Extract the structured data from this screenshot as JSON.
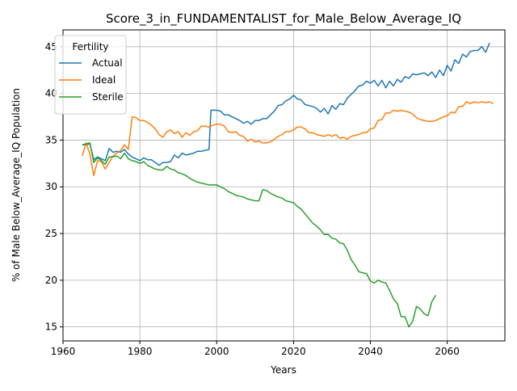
{
  "chart_data": {
    "type": "line",
    "title": "Score_3_in_FUNDAMENTALIST_for_Male_Below_Average_IQ",
    "xlabel": "Years",
    "ylabel": "% of Male Below_Average_IQ Population",
    "xlim": [
      1960,
      2075
    ],
    "ylim": [
      13.5,
      46.8
    ],
    "xticks": [
      "1960",
      "1980",
      "2000",
      "2020",
      "2040",
      "2060"
    ],
    "yticks": [
      "15",
      "20",
      "25",
      "30",
      "35",
      "40",
      "45"
    ],
    "grid": true,
    "legend": {
      "title": "Fertility",
      "position": "top-left"
    },
    "series": [
      {
        "name": "Actual",
        "color": "#1f77b4",
        "points": [
          [
            1965,
            34.5
          ],
          [
            1966,
            34.5
          ],
          [
            1967,
            34.6
          ],
          [
            1968,
            32.9
          ],
          [
            1969,
            33.2
          ],
          [
            1970,
            33.0
          ],
          [
            1971,
            32.8
          ],
          [
            1972,
            34.1
          ],
          [
            1973,
            33.7
          ],
          [
            1974,
            33.8
          ],
          [
            1975,
            33.7
          ],
          [
            1976,
            34.0
          ],
          [
            1977,
            33.5
          ],
          [
            1978,
            33.2
          ],
          [
            1979,
            33.0
          ],
          [
            1980,
            32.8
          ],
          [
            1981,
            33.1
          ],
          [
            1982,
            32.9
          ],
          [
            1983,
            32.9
          ],
          [
            1984,
            32.6
          ],
          [
            1985,
            32.3
          ],
          [
            1986,
            32.6
          ],
          [
            1987,
            32.6
          ],
          [
            1988,
            32.7
          ],
          [
            1989,
            33.4
          ],
          [
            1990,
            33.1
          ],
          [
            1991,
            33.6
          ],
          [
            1992,
            33.4
          ],
          [
            1993,
            33.5
          ],
          [
            1994,
            33.6
          ],
          [
            1995,
            33.8
          ],
          [
            1996,
            33.8
          ],
          [
            1997,
            33.9
          ],
          [
            1998,
            34.0
          ],
          [
            1998.5,
            38.2
          ],
          [
            1999,
            38.2
          ],
          [
            2000,
            38.2
          ],
          [
            2001,
            38.1
          ],
          [
            2002,
            37.7
          ],
          [
            2003,
            37.7
          ],
          [
            2004,
            37.5
          ],
          [
            2005,
            37.3
          ],
          [
            2006,
            37.1
          ],
          [
            2007,
            36.8
          ],
          [
            2008,
            37.0
          ],
          [
            2009,
            36.7
          ],
          [
            2010,
            37.1
          ],
          [
            2011,
            37.1
          ],
          [
            2012,
            37.3
          ],
          [
            2013,
            37.3
          ],
          [
            2014,
            37.7
          ],
          [
            2015,
            38.1
          ],
          [
            2016,
            38.7
          ],
          [
            2017,
            38.8
          ],
          [
            2018,
            39.2
          ],
          [
            2019,
            39.4
          ],
          [
            2020,
            39.8
          ],
          [
            2021,
            39.4
          ],
          [
            2022,
            39.3
          ],
          [
            2023,
            38.8
          ],
          [
            2024,
            38.7
          ],
          [
            2025,
            38.6
          ],
          [
            2026,
            38.4
          ],
          [
            2027,
            38.0
          ],
          [
            2028,
            38.4
          ],
          [
            2029,
            37.8
          ],
          [
            2030,
            38.7
          ],
          [
            2031,
            38.3
          ],
          [
            2032,
            38.9
          ],
          [
            2033,
            38.8
          ],
          [
            2034,
            39.5
          ],
          [
            2035,
            39.9
          ],
          [
            2036,
            40.3
          ],
          [
            2037,
            40.8
          ],
          [
            2038,
            40.9
          ],
          [
            2039,
            41.3
          ],
          [
            2040,
            41.1
          ],
          [
            2041,
            41.4
          ],
          [
            2042,
            40.8
          ],
          [
            2043,
            41.4
          ],
          [
            2044,
            40.6
          ],
          [
            2045,
            41.3
          ],
          [
            2046,
            40.8
          ],
          [
            2047,
            41.5
          ],
          [
            2048,
            41.2
          ],
          [
            2049,
            41.8
          ],
          [
            2050,
            41.6
          ],
          [
            2051,
            42.1
          ],
          [
            2052,
            42.0
          ],
          [
            2053,
            42.1
          ],
          [
            2054,
            42.2
          ],
          [
            2055,
            41.9
          ],
          [
            2056,
            42.3
          ],
          [
            2057,
            41.7
          ],
          [
            2058,
            42.5
          ],
          [
            2059,
            41.9
          ],
          [
            2060,
            43.0
          ],
          [
            2061,
            42.4
          ],
          [
            2062,
            43.6
          ],
          [
            2063,
            43.2
          ],
          [
            2064,
            44.2
          ],
          [
            2065,
            43.9
          ],
          [
            2066,
            44.5
          ],
          [
            2067,
            44.6
          ],
          [
            2068,
            44.6
          ],
          [
            2069,
            45.0
          ],
          [
            2070,
            44.4
          ],
          [
            2071,
            45.4
          ]
        ]
      },
      {
        "name": "Ideal",
        "color": "#ff7f0e",
        "points": [
          [
            1965,
            33.3
          ],
          [
            1966,
            34.7
          ],
          [
            1967,
            33.5
          ],
          [
            1968,
            31.2
          ],
          [
            1969,
            32.8
          ],
          [
            1970,
            32.7
          ],
          [
            1971,
            31.9
          ],
          [
            1972,
            32.6
          ],
          [
            1973,
            33.3
          ],
          [
            1974,
            33.6
          ],
          [
            1975,
            33.9
          ],
          [
            1976,
            34.5
          ],
          [
            1977,
            34.0
          ],
          [
            1978,
            37.5
          ],
          [
            1979,
            37.4
          ],
          [
            1980,
            37.1
          ],
          [
            1981,
            37.1
          ],
          [
            1982,
            36.9
          ],
          [
            1983,
            36.6
          ],
          [
            1984,
            36.2
          ],
          [
            1985,
            35.6
          ],
          [
            1986,
            35.3
          ],
          [
            1987,
            35.9
          ],
          [
            1988,
            36.1
          ],
          [
            1989,
            35.7
          ],
          [
            1990,
            35.9
          ],
          [
            1991,
            35.3
          ],
          [
            1992,
            35.8
          ],
          [
            1993,
            35.5
          ],
          [
            1994,
            35.9
          ],
          [
            1995,
            36.0
          ],
          [
            1996,
            36.5
          ],
          [
            1997,
            36.5
          ],
          [
            1998,
            36.4
          ],
          [
            1999,
            36.6
          ],
          [
            2000,
            36.7
          ],
          [
            2001,
            36.7
          ],
          [
            2002,
            36.5
          ],
          [
            2003,
            35.9
          ],
          [
            2004,
            35.8
          ],
          [
            2005,
            35.9
          ],
          [
            2006,
            35.5
          ],
          [
            2007,
            35.4
          ],
          [
            2008,
            34.9
          ],
          [
            2009,
            35.1
          ],
          [
            2010,
            34.8
          ],
          [
            2011,
            34.9
          ],
          [
            2012,
            34.7
          ],
          [
            2013,
            34.7
          ],
          [
            2014,
            34.8
          ],
          [
            2015,
            35.1
          ],
          [
            2016,
            35.4
          ],
          [
            2017,
            35.6
          ],
          [
            2018,
            35.9
          ],
          [
            2019,
            35.9
          ],
          [
            2020,
            36.1
          ],
          [
            2021,
            36.4
          ],
          [
            2022,
            36.4
          ],
          [
            2023,
            36.2
          ],
          [
            2024,
            35.8
          ],
          [
            2025,
            35.8
          ],
          [
            2026,
            35.6
          ],
          [
            2027,
            35.5
          ],
          [
            2028,
            35.4
          ],
          [
            2029,
            35.6
          ],
          [
            2030,
            35.4
          ],
          [
            2031,
            35.6
          ],
          [
            2032,
            35.2
          ],
          [
            2033,
            35.3
          ],
          [
            2034,
            35.1
          ],
          [
            2035,
            35.4
          ],
          [
            2036,
            35.5
          ],
          [
            2037,
            35.6
          ],
          [
            2038,
            35.8
          ],
          [
            2039,
            35.8
          ],
          [
            2040,
            36.2
          ],
          [
            2041,
            36.3
          ],
          [
            2042,
            37.1
          ],
          [
            2043,
            37.2
          ],
          [
            2044,
            37.9
          ],
          [
            2045,
            37.9
          ],
          [
            2046,
            38.2
          ],
          [
            2047,
            38.1
          ],
          [
            2048,
            38.2
          ],
          [
            2049,
            38.1
          ],
          [
            2050,
            38.0
          ],
          [
            2051,
            37.8
          ],
          [
            2052,
            37.4
          ],
          [
            2053,
            37.2
          ],
          [
            2054,
            37.1
          ],
          [
            2055,
            37.0
          ],
          [
            2056,
            37.0
          ],
          [
            2057,
            37.1
          ],
          [
            2058,
            37.3
          ],
          [
            2059,
            37.5
          ],
          [
            2060,
            37.6
          ],
          [
            2061,
            38.0
          ],
          [
            2062,
            37.9
          ],
          [
            2063,
            38.6
          ],
          [
            2064,
            38.6
          ],
          [
            2065,
            39.1
          ],
          [
            2066,
            38.9
          ],
          [
            2067,
            39.1
          ],
          [
            2068,
            39.0
          ],
          [
            2069,
            39.1
          ],
          [
            2070,
            39.0
          ],
          [
            2071,
            39.1
          ],
          [
            2072,
            38.9
          ]
        ]
      },
      {
        "name": "Sterile",
        "color": "#2ca02c",
        "points": [
          [
            1965,
            34.5
          ],
          [
            1966,
            34.6
          ],
          [
            1967,
            34.7
          ],
          [
            1968,
            32.6
          ],
          [
            1969,
            33.1
          ],
          [
            1970,
            32.8
          ],
          [
            1971,
            32.4
          ],
          [
            1972,
            33.2
          ],
          [
            1973,
            33.2
          ],
          [
            1974,
            33.3
          ],
          [
            1975,
            33.0
          ],
          [
            1976,
            33.6
          ],
          [
            1977,
            33.0
          ],
          [
            1978,
            32.8
          ],
          [
            1979,
            32.7
          ],
          [
            1980,
            32.5
          ],
          [
            1981,
            32.7
          ],
          [
            1982,
            32.3
          ],
          [
            1983,
            32.1
          ],
          [
            1984,
            31.9
          ],
          [
            1985,
            31.8
          ],
          [
            1986,
            31.8
          ],
          [
            1987,
            32.2
          ],
          [
            1988,
            31.9
          ],
          [
            1989,
            31.8
          ],
          [
            1990,
            31.5
          ],
          [
            1991,
            31.4
          ],
          [
            1992,
            31.2
          ],
          [
            1993,
            30.9
          ],
          [
            1994,
            30.7
          ],
          [
            1995,
            30.5
          ],
          [
            1996,
            30.4
          ],
          [
            1997,
            30.3
          ],
          [
            1998,
            30.2
          ],
          [
            1999,
            30.2
          ],
          [
            2000,
            30.2
          ],
          [
            2001,
            30.0
          ],
          [
            2002,
            29.8
          ],
          [
            2003,
            29.5
          ],
          [
            2004,
            29.3
          ],
          [
            2005,
            29.1
          ],
          [
            2006,
            29.0
          ],
          [
            2007,
            28.9
          ],
          [
            2008,
            28.7
          ],
          [
            2009,
            28.6
          ],
          [
            2010,
            28.5
          ],
          [
            2011,
            28.5
          ],
          [
            2012,
            29.7
          ],
          [
            2013,
            29.6
          ],
          [
            2014,
            29.3
          ],
          [
            2015,
            29.1
          ],
          [
            2016,
            28.9
          ],
          [
            2017,
            28.8
          ],
          [
            2018,
            28.5
          ],
          [
            2019,
            28.4
          ],
          [
            2020,
            28.3
          ],
          [
            2021,
            27.9
          ],
          [
            2022,
            27.6
          ],
          [
            2023,
            27.1
          ],
          [
            2024,
            26.6
          ],
          [
            2025,
            26.1
          ],
          [
            2026,
            25.8
          ],
          [
            2027,
            25.4
          ],
          [
            2028,
            24.9
          ],
          [
            2029,
            24.9
          ],
          [
            2030,
            24.5
          ],
          [
            2031,
            24.4
          ],
          [
            2032,
            24.0
          ],
          [
            2033,
            23.9
          ],
          [
            2034,
            23.2
          ],
          [
            2035,
            22.2
          ],
          [
            2036,
            21.6
          ],
          [
            2037,
            20.9
          ],
          [
            2038,
            20.8
          ],
          [
            2039,
            20.7
          ],
          [
            2040,
            19.9
          ],
          [
            2041,
            19.7
          ],
          [
            2042,
            20.0
          ],
          [
            2043,
            19.8
          ],
          [
            2044,
            19.7
          ],
          [
            2045,
            18.9
          ],
          [
            2046,
            18.0
          ],
          [
            2047,
            17.5
          ],
          [
            2048,
            16.1
          ],
          [
            2049,
            16.1
          ],
          [
            2050,
            15.0
          ],
          [
            2051,
            15.6
          ],
          [
            2052,
            17.2
          ],
          [
            2053,
            16.9
          ],
          [
            2054,
            16.4
          ],
          [
            2055,
            16.2
          ],
          [
            2056,
            17.7
          ],
          [
            2057,
            18.4
          ]
        ]
      }
    ]
  }
}
